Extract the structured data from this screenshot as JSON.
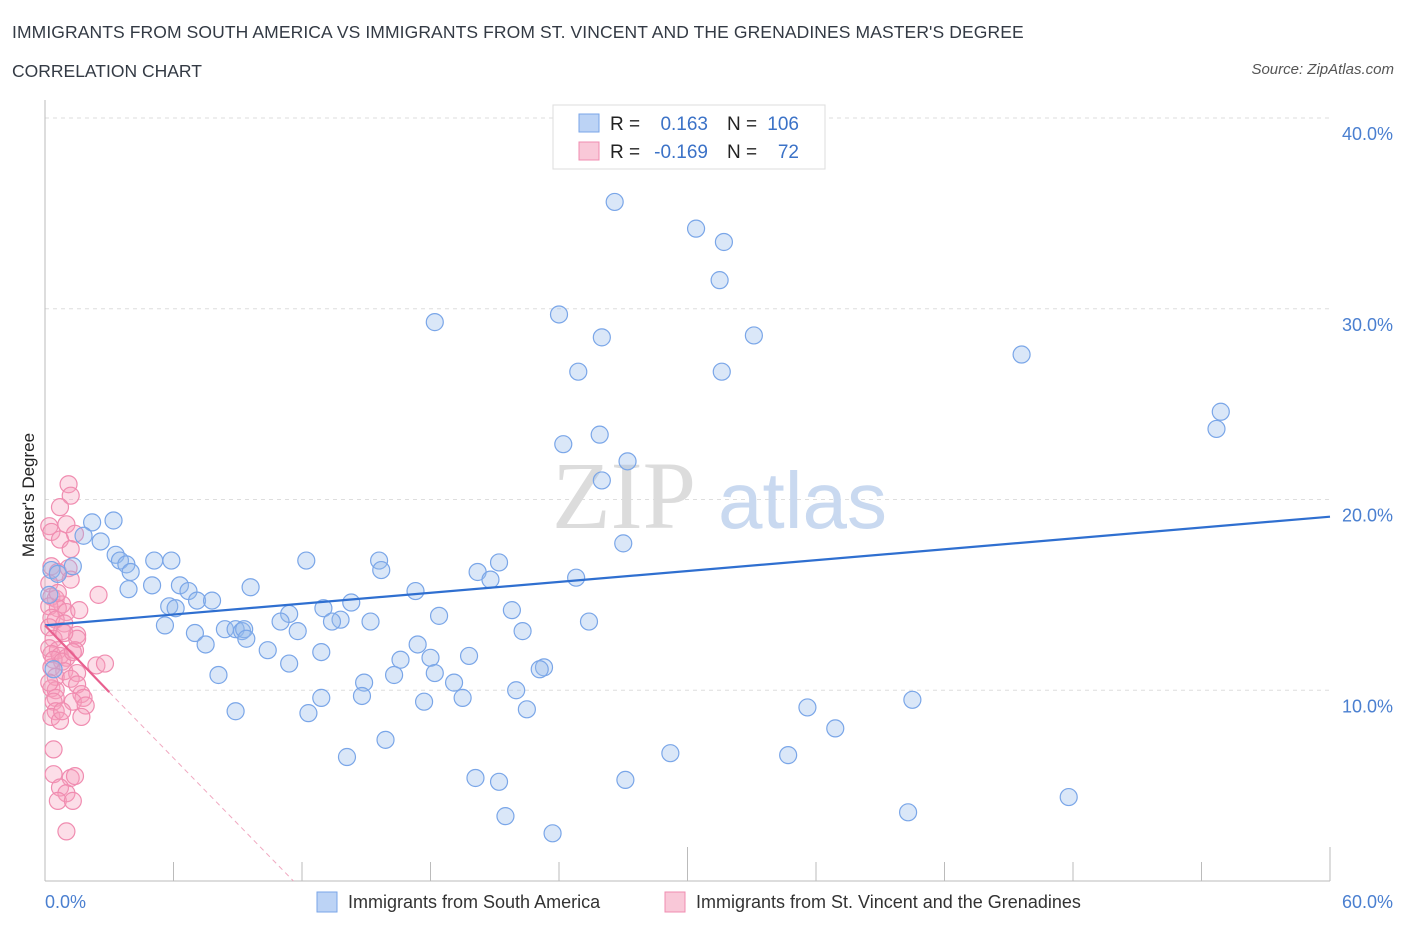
{
  "title": "IMMIGRANTS FROM SOUTH AMERICA VS IMMIGRANTS FROM ST. VINCENT AND THE GRENADINES MASTER'S DEGREE",
  "subtitle": "CORRELATION CHART",
  "source": "Source: ZipAtlas.com",
  "watermark": {
    "zip": "ZIP",
    "atlas": "atlas"
  },
  "chart_data": {
    "type": "scatter",
    "xlabel": "",
    "ylabel": "Master's Degree",
    "xlim": [
      0,
      60
    ],
    "ylim": [
      0,
      40
    ],
    "x_tick_labels": [
      "0.0%",
      "60.0%"
    ],
    "y_ticks": [
      10,
      20,
      30,
      40
    ],
    "y_tick_labels": [
      "10.0%",
      "20.0%",
      "30.0%",
      "40.0%"
    ],
    "grid": true,
    "legend": {
      "position": "top-center",
      "rows": [
        {
          "r_label": "R =",
          "r_value": "0.163",
          "n_label": "N =",
          "n_value": "106"
        },
        {
          "r_label": "R =",
          "r_value": "-0.169",
          "n_label": "N =",
          "n_value": "72"
        }
      ]
    },
    "series": [
      {
        "name": "Immigrants from South America",
        "color": "#7aa6e8",
        "line_color": "#2f6fd0",
        "trend": {
          "x0": 0,
          "y0": 13.4,
          "x1": 60,
          "y1": 19.1
        },
        "points": [
          [
            26.6,
            35.6
          ],
          [
            30.4,
            34.2
          ],
          [
            31.7,
            33.5
          ],
          [
            31.5,
            31.5
          ],
          [
            18.2,
            29.3
          ],
          [
            24.0,
            29.7
          ],
          [
            26.0,
            28.5
          ],
          [
            33.1,
            28.6
          ],
          [
            45.6,
            27.6
          ],
          [
            24.9,
            26.7
          ],
          [
            31.6,
            26.7
          ],
          [
            54.9,
            24.6
          ],
          [
            54.7,
            23.7
          ],
          [
            25.9,
            23.4
          ],
          [
            24.2,
            22.9
          ],
          [
            27.2,
            22.0
          ],
          [
            26.0,
            21.0
          ],
          [
            3.2,
            18.9
          ],
          [
            2.2,
            18.8
          ],
          [
            1.8,
            18.1
          ],
          [
            2.6,
            17.8
          ],
          [
            27.0,
            17.7
          ],
          [
            3.3,
            17.1
          ],
          [
            3.5,
            16.8
          ],
          [
            3.8,
            16.6
          ],
          [
            5.1,
            16.8
          ],
          [
            5.9,
            16.8
          ],
          [
            12.2,
            16.8
          ],
          [
            15.6,
            16.8
          ],
          [
            1.3,
            16.5
          ],
          [
            21.2,
            16.7
          ],
          [
            15.7,
            16.3
          ],
          [
            4.0,
            16.2
          ],
          [
            20.2,
            16.2
          ],
          [
            24.8,
            15.9
          ],
          [
            20.8,
            15.8
          ],
          [
            3.9,
            15.3
          ],
          [
            6.3,
            15.5
          ],
          [
            5.0,
            15.5
          ],
          [
            9.6,
            15.4
          ],
          [
            6.7,
            15.2
          ],
          [
            17.3,
            15.2
          ],
          [
            7.1,
            14.7
          ],
          [
            7.8,
            14.7
          ],
          [
            14.3,
            14.6
          ],
          [
            5.8,
            14.4
          ],
          [
            6.1,
            14.3
          ],
          [
            13.0,
            14.3
          ],
          [
            21.8,
            14.2
          ],
          [
            11.4,
            14.0
          ],
          [
            18.4,
            13.9
          ],
          [
            13.8,
            13.7
          ],
          [
            11.0,
            13.6
          ],
          [
            13.4,
            13.6
          ],
          [
            15.2,
            13.6
          ],
          [
            25.4,
            13.6
          ],
          [
            5.6,
            13.4
          ],
          [
            8.4,
            13.2
          ],
          [
            8.9,
            13.2
          ],
          [
            9.2,
            13.1
          ],
          [
            9.3,
            13.2
          ],
          [
            11.8,
            13.1
          ],
          [
            22.3,
            13.1
          ],
          [
            7.0,
            13.0
          ],
          [
            9.4,
            12.7
          ],
          [
            7.5,
            12.4
          ],
          [
            17.4,
            12.4
          ],
          [
            10.4,
            12.1
          ],
          [
            12.9,
            12.0
          ],
          [
            19.8,
            11.8
          ],
          [
            16.6,
            11.6
          ],
          [
            18.0,
            11.7
          ],
          [
            11.4,
            11.4
          ],
          [
            23.3,
            11.2
          ],
          [
            23.1,
            11.1
          ],
          [
            8.1,
            10.8
          ],
          [
            16.3,
            10.8
          ],
          [
            18.2,
            10.9
          ],
          [
            14.9,
            10.4
          ],
          [
            19.1,
            10.4
          ],
          [
            22.0,
            10.0
          ],
          [
            12.9,
            9.6
          ],
          [
            14.8,
            9.7
          ],
          [
            17.7,
            9.4
          ],
          [
            19.5,
            9.6
          ],
          [
            8.9,
            8.9
          ],
          [
            12.3,
            8.8
          ],
          [
            22.5,
            9.0
          ],
          [
            35.6,
            9.1
          ],
          [
            40.5,
            9.5
          ],
          [
            36.9,
            8.0
          ],
          [
            15.9,
            7.4
          ],
          [
            14.1,
            6.5
          ],
          [
            29.2,
            6.7
          ],
          [
            34.7,
            6.6
          ],
          [
            20.1,
            5.4
          ],
          [
            21.2,
            5.2
          ],
          [
            27.1,
            5.3
          ],
          [
            47.8,
            4.4
          ],
          [
            40.3,
            3.6
          ],
          [
            21.5,
            3.4
          ],
          [
            23.7,
            2.5
          ],
          [
            0.3,
            16.3
          ],
          [
            0.6,
            16.1
          ],
          [
            0.2,
            15.0
          ],
          [
            0.4,
            11.1
          ]
        ]
      },
      {
        "name": "Immigrants from St. Vincent and the Grenadines",
        "color": "#f08cb0",
        "line_color": "#e8608f",
        "trend": {
          "x0": 0,
          "y0": 13.4,
          "x1": 3.0,
          "y1": 9.9
        },
        "trend_dashed": {
          "x0": 3.0,
          "y0": 9.9,
          "x1": 11.6,
          "y1": 0
        },
        "points": [
          [
            1.1,
            20.8
          ],
          [
            1.2,
            20.2
          ],
          [
            0.7,
            19.6
          ],
          [
            0.2,
            18.6
          ],
          [
            1.0,
            18.7
          ],
          [
            0.3,
            18.3
          ],
          [
            1.4,
            18.2
          ],
          [
            0.7,
            17.9
          ],
          [
            1.2,
            17.4
          ],
          [
            0.3,
            16.5
          ],
          [
            0.6,
            16.2
          ],
          [
            1.1,
            16.4
          ],
          [
            1.2,
            15.8
          ],
          [
            0.2,
            15.6
          ],
          [
            2.5,
            15.0
          ],
          [
            0.3,
            14.9
          ],
          [
            0.5,
            14.8
          ],
          [
            0.8,
            14.5
          ],
          [
            0.2,
            14.4
          ],
          [
            0.6,
            14.3
          ],
          [
            1.0,
            14.1
          ],
          [
            1.6,
            14.2
          ],
          [
            0.3,
            13.8
          ],
          [
            0.5,
            13.7
          ],
          [
            0.9,
            13.5
          ],
          [
            0.2,
            13.3
          ],
          [
            0.8,
            13.1
          ],
          [
            1.5,
            12.9
          ],
          [
            0.4,
            12.7
          ],
          [
            1.5,
            12.7
          ],
          [
            0.2,
            12.2
          ],
          [
            0.6,
            12.1
          ],
          [
            1.4,
            12.1
          ],
          [
            0.3,
            11.9
          ],
          [
            0.7,
            11.8
          ],
          [
            1.0,
            11.7
          ],
          [
            0.4,
            11.6
          ],
          [
            0.8,
            11.5
          ],
          [
            2.4,
            11.3
          ],
          [
            2.8,
            11.4
          ],
          [
            0.3,
            11.2
          ],
          [
            0.9,
            11.0
          ],
          [
            1.5,
            10.9
          ],
          [
            0.5,
            10.7
          ],
          [
            1.2,
            10.6
          ],
          [
            1.5,
            10.3
          ],
          [
            0.3,
            10.1
          ],
          [
            0.5,
            10.0
          ],
          [
            1.7,
            9.8
          ],
          [
            0.5,
            9.6
          ],
          [
            1.8,
            9.6
          ],
          [
            0.4,
            9.4
          ],
          [
            1.3,
            9.4
          ],
          [
            1.9,
            9.2
          ],
          [
            0.5,
            8.9
          ],
          [
            0.3,
            8.6
          ],
          [
            1.7,
            8.6
          ],
          [
            0.7,
            8.4
          ],
          [
            0.4,
            6.9
          ],
          [
            0.4,
            5.6
          ],
          [
            1.2,
            5.4
          ],
          [
            1.4,
            5.5
          ],
          [
            0.7,
            4.9
          ],
          [
            1.0,
            4.6
          ],
          [
            0.6,
            4.2
          ],
          [
            1.3,
            4.2
          ],
          [
            1.0,
            2.6
          ],
          [
            0.6,
            15.1
          ],
          [
            0.9,
            13.0
          ],
          [
            1.3,
            12.0
          ],
          [
            0.2,
            10.4
          ],
          [
            0.8,
            8.9
          ]
        ]
      }
    ]
  }
}
